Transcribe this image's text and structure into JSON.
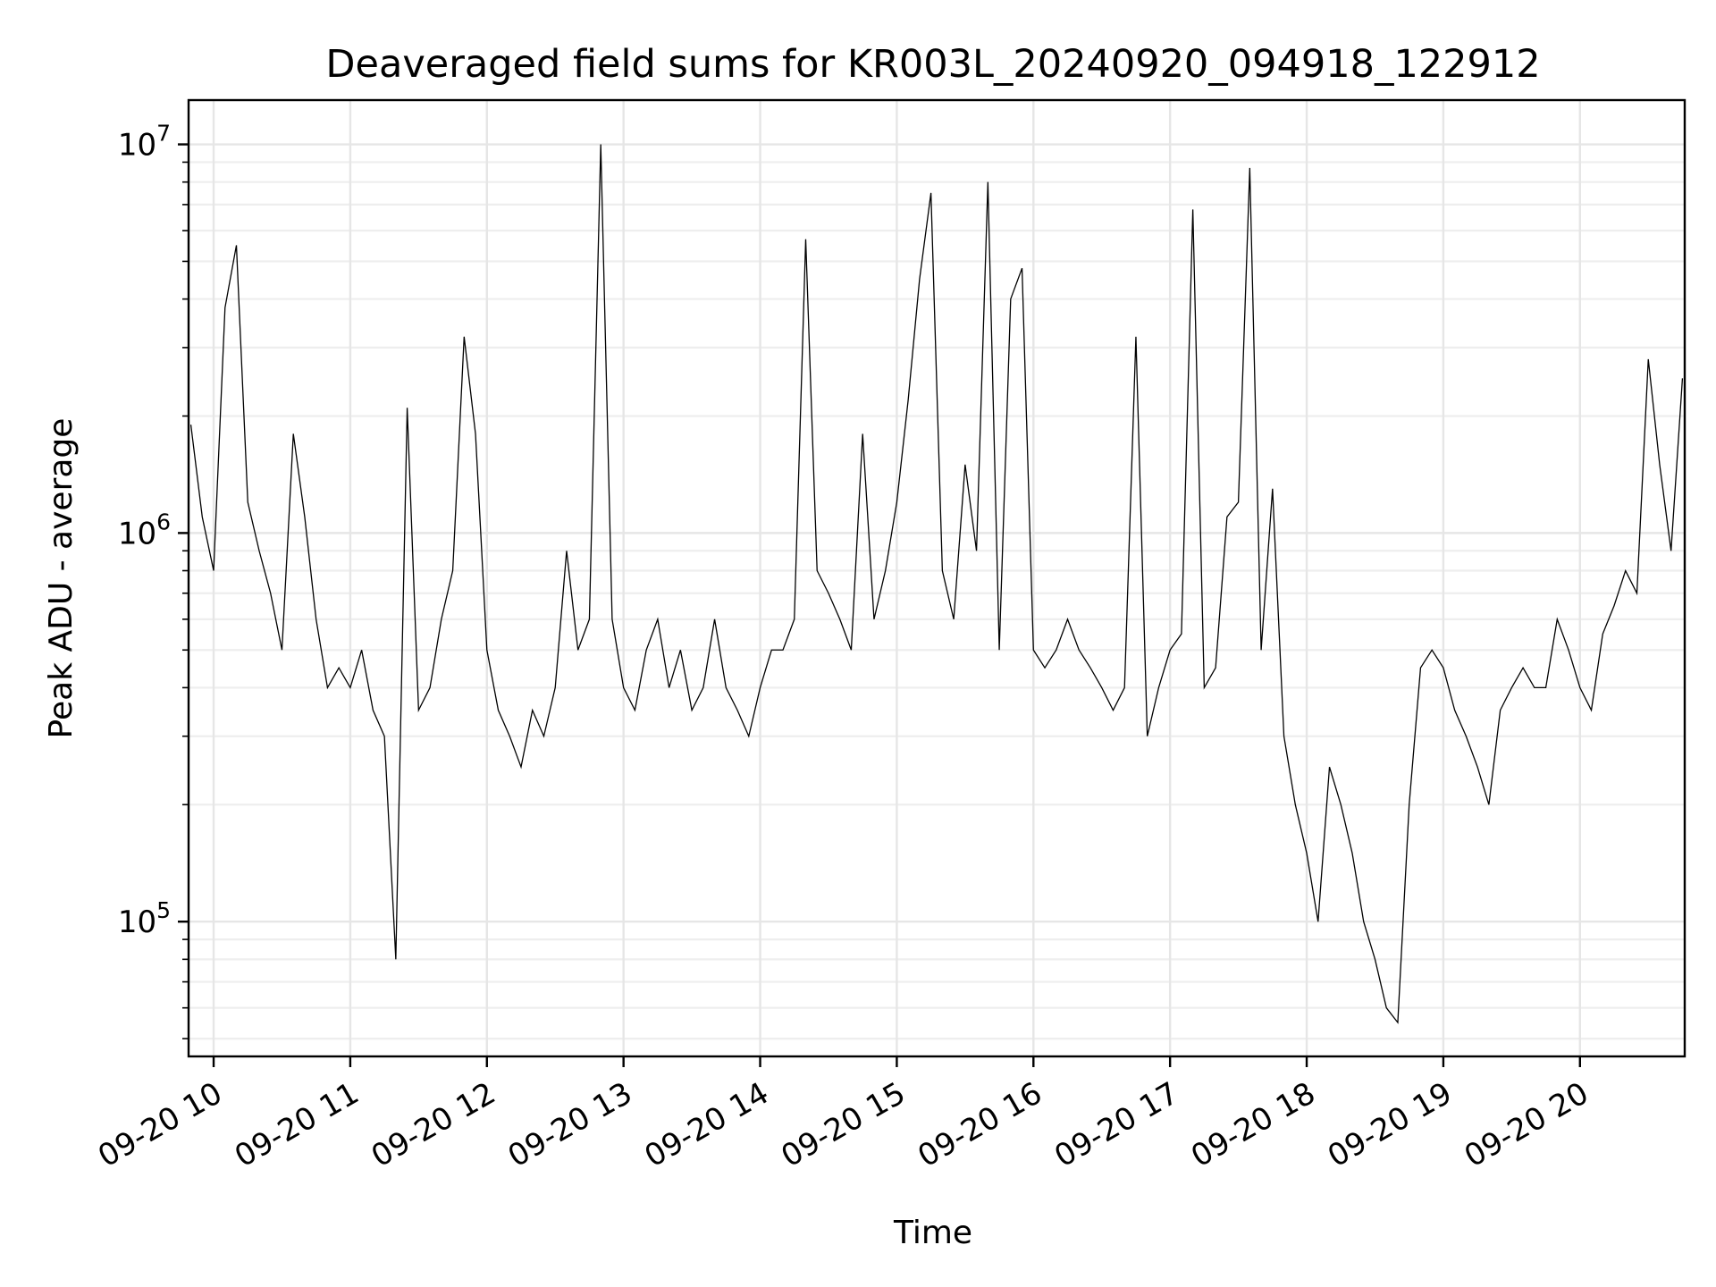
{
  "chart_data": {
    "type": "line",
    "title": "Deaveraged field sums for KR003L_20240920_094918_122912",
    "xlabel": "Time",
    "ylabel": "Peak ADU - average",
    "yscale": "log",
    "ylim": [
      45000,
      13000000
    ],
    "xlim": [
      "2024-09-20 09:49",
      "2024-09-20 20:46"
    ],
    "grid": "on (major and minor, light gray)",
    "legend": "none",
    "line_color": "#000000",
    "x_tick_labels": [
      "09-20 10",
      "09-20 11",
      "09-20 12",
      "09-20 13",
      "09-20 14",
      "09-20 15",
      "09-20 16",
      "09-20 17",
      "09-20 18",
      "09-20 19",
      "09-20 20"
    ],
    "y_tick_labels": [
      {
        "value": 100000,
        "base": "10",
        "exp": "5"
      },
      {
        "value": 1000000,
        "base": "10",
        "exp": "6"
      },
      {
        "value": 10000000,
        "base": "10",
        "exp": "7"
      }
    ],
    "series": [
      {
        "x": [
          "2024-09-20 09:50",
          "2024-09-20 09:55",
          "2024-09-20 10:00",
          "2024-09-20 10:05",
          "2024-09-20 10:10",
          "2024-09-20 10:15",
          "2024-09-20 10:20",
          "2024-09-20 10:25",
          "2024-09-20 10:30",
          "2024-09-20 10:35",
          "2024-09-20 10:40",
          "2024-09-20 10:45",
          "2024-09-20 10:50",
          "2024-09-20 10:55",
          "2024-09-20 11:00",
          "2024-09-20 11:05",
          "2024-09-20 11:10",
          "2024-09-20 11:15",
          "2024-09-20 11:20",
          "2024-09-20 11:25",
          "2024-09-20 11:30",
          "2024-09-20 11:35",
          "2024-09-20 11:40",
          "2024-09-20 11:45",
          "2024-09-20 11:50",
          "2024-09-20 11:55",
          "2024-09-20 12:00",
          "2024-09-20 12:05",
          "2024-09-20 12:10",
          "2024-09-20 12:15",
          "2024-09-20 12:20",
          "2024-09-20 12:25",
          "2024-09-20 12:30",
          "2024-09-20 12:35",
          "2024-09-20 12:40",
          "2024-09-20 12:45",
          "2024-09-20 12:50",
          "2024-09-20 12:55",
          "2024-09-20 13:00",
          "2024-09-20 13:05",
          "2024-09-20 13:10",
          "2024-09-20 13:15",
          "2024-09-20 13:20",
          "2024-09-20 13:25",
          "2024-09-20 13:30",
          "2024-09-20 13:35",
          "2024-09-20 13:40",
          "2024-09-20 13:45",
          "2024-09-20 13:50",
          "2024-09-20 13:55",
          "2024-09-20 14:00",
          "2024-09-20 14:05",
          "2024-09-20 14:10",
          "2024-09-20 14:15",
          "2024-09-20 14:20",
          "2024-09-20 14:25",
          "2024-09-20 14:30",
          "2024-09-20 14:35",
          "2024-09-20 14:40",
          "2024-09-20 14:45",
          "2024-09-20 14:50",
          "2024-09-20 14:55",
          "2024-09-20 15:00",
          "2024-09-20 15:05",
          "2024-09-20 15:10",
          "2024-09-20 15:15",
          "2024-09-20 15:20",
          "2024-09-20 15:25",
          "2024-09-20 15:30",
          "2024-09-20 15:35",
          "2024-09-20 15:40",
          "2024-09-20 15:45",
          "2024-09-20 15:50",
          "2024-09-20 15:55",
          "2024-09-20 16:00",
          "2024-09-20 16:05",
          "2024-09-20 16:10",
          "2024-09-20 16:15",
          "2024-09-20 16:20",
          "2024-09-20 16:25",
          "2024-09-20 16:30",
          "2024-09-20 16:35",
          "2024-09-20 16:40",
          "2024-09-20 16:45",
          "2024-09-20 16:50",
          "2024-09-20 16:55",
          "2024-09-20 17:00",
          "2024-09-20 17:05",
          "2024-09-20 17:10",
          "2024-09-20 17:15",
          "2024-09-20 17:20",
          "2024-09-20 17:25",
          "2024-09-20 17:30",
          "2024-09-20 17:35",
          "2024-09-20 17:40",
          "2024-09-20 17:45",
          "2024-09-20 17:50",
          "2024-09-20 17:55",
          "2024-09-20 18:00",
          "2024-09-20 18:05",
          "2024-09-20 18:10",
          "2024-09-20 18:15",
          "2024-09-20 18:20",
          "2024-09-20 18:25",
          "2024-09-20 18:30",
          "2024-09-20 18:35",
          "2024-09-20 18:40",
          "2024-09-20 18:45",
          "2024-09-20 18:50",
          "2024-09-20 18:55",
          "2024-09-20 19:00",
          "2024-09-20 19:05",
          "2024-09-20 19:10",
          "2024-09-20 19:15",
          "2024-09-20 19:20",
          "2024-09-20 19:25",
          "2024-09-20 19:30",
          "2024-09-20 19:35",
          "2024-09-20 19:40",
          "2024-09-20 19:45",
          "2024-09-20 19:50",
          "2024-09-20 19:55",
          "2024-09-20 20:00",
          "2024-09-20 20:05",
          "2024-09-20 20:10",
          "2024-09-20 20:15",
          "2024-09-20 20:20",
          "2024-09-20 20:25",
          "2024-09-20 20:30",
          "2024-09-20 20:35",
          "2024-09-20 20:40",
          "2024-09-20 20:45"
        ],
        "values": [
          1900000,
          1100000,
          800000,
          3800000,
          5500000,
          1200000,
          900000,
          700000,
          500000,
          1800000,
          1100000,
          600000,
          400000,
          450000,
          400000,
          500000,
          350000,
          300000,
          80000,
          2100000,
          350000,
          400000,
          600000,
          800000,
          3200000,
          1800000,
          500000,
          350000,
          300000,
          250000,
          350000,
          300000,
          400000,
          900000,
          500000,
          600000,
          10000000,
          600000,
          400000,
          350000,
          500000,
          600000,
          400000,
          500000,
          350000,
          400000,
          600000,
          400000,
          350000,
          300000,
          400000,
          500000,
          500000,
          600000,
          5700000,
          800000,
          700000,
          600000,
          500000,
          1800000,
          600000,
          800000,
          1200000,
          2200000,
          4500000,
          7500000,
          800000,
          600000,
          1500000,
          900000,
          8000000,
          500000,
          4000000,
          4800000,
          500000,
          450000,
          500000,
          600000,
          500000,
          450000,
          400000,
          350000,
          400000,
          3200000,
          300000,
          400000,
          500000,
          550000,
          6800000,
          400000,
          450000,
          1100000,
          1200000,
          8700000,
          500000,
          1300000,
          300000,
          200000,
          150000,
          100000,
          250000,
          200000,
          150000,
          100000,
          80000,
          60000,
          55000,
          200000,
          450000,
          500000,
          450000,
          350000,
          300000,
          250000,
          200000,
          350000,
          400000,
          450000,
          400000,
          400000,
          600000,
          500000,
          400000,
          350000,
          550000,
          650000,
          800000,
          700000,
          2800000,
          1500000,
          900000,
          2500000
        ]
      }
    ]
  }
}
